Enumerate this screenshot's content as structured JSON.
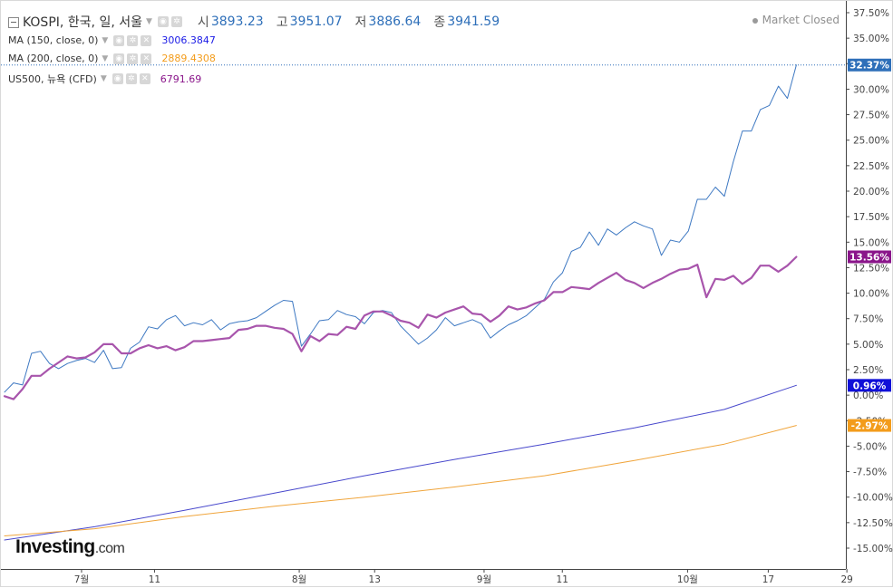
{
  "header": {
    "symbol": "KOSPI, 한국, 일, 서울",
    "open_label": "시",
    "open_value": "3893.23",
    "high_label": "고",
    "high_value": "3951.07",
    "low_label": "저",
    "low_value": "3886.64",
    "close_label": "종",
    "close_value": "3941.59",
    "status": "Market Closed"
  },
  "indicators": [
    {
      "name": "MA (150, close, 0)",
      "value": "3006.3847",
      "color": "#1a1ae6"
    },
    {
      "name": "MA (200, close, 0)",
      "value": "2889.4308",
      "color": "#f39c1b"
    },
    {
      "name": "US500, 뉴욕 (CFD)",
      "value": "6791.69",
      "color": "#8a158a"
    }
  ],
  "logo": {
    "brand": "Investing",
    "suffix": ".com"
  },
  "chart_data": {
    "type": "line",
    "x_tick_labels": [
      "7월",
      "11",
      "8월",
      "13",
      "9월",
      "11",
      "10월",
      "17",
      "29"
    ],
    "y_tick_labels": [
      "37.50%",
      "35.00%",
      "32.50%",
      "30.00%",
      "27.50%",
      "25.00%",
      "22.50%",
      "20.00%",
      "17.50%",
      "15.00%",
      "12.50%",
      "10.00%",
      "7.50%",
      "5.00%",
      "2.50%",
      "0.00%",
      "-2.50%",
      "-5.00%",
      "-7.50%",
      "-10.00%",
      "-12.50%",
      "-15.00%"
    ],
    "ylim": [
      -17,
      38
    ],
    "xlim": [
      0,
      93.5
    ],
    "grid": false,
    "last_value_labels": [
      {
        "text": "32.37%",
        "value": 32.37,
        "color": "#2e6fb9"
      },
      {
        "text": "13.56%",
        "value": 13.56,
        "color": "#8a158a"
      },
      {
        "text": "0.96%",
        "value": 0.96,
        "color": "#1010d8"
      },
      {
        "text": "-2.97%",
        "value": -2.97,
        "color": "#f39c1b"
      }
    ],
    "series": [
      {
        "color": "#3d78c2",
        "width": 1,
        "points": [
          [
            0,
            0.3
          ],
          [
            1,
            1.2
          ],
          [
            2,
            1.0
          ],
          [
            3,
            4.1
          ],
          [
            4,
            4.3
          ],
          [
            5,
            3.1
          ],
          [
            6,
            2.6
          ],
          [
            7,
            3.1
          ],
          [
            8,
            3.4
          ],
          [
            9,
            3.6
          ],
          [
            10,
            3.2
          ],
          [
            11,
            4.4
          ],
          [
            12,
            2.6
          ],
          [
            13,
            2.7
          ],
          [
            14,
            4.6
          ],
          [
            15,
            5.2
          ],
          [
            16,
            6.7
          ],
          [
            17,
            6.5
          ],
          [
            18,
            7.4
          ],
          [
            19,
            7.8
          ],
          [
            20,
            6.8
          ],
          [
            21,
            7.1
          ],
          [
            22,
            6.9
          ],
          [
            23,
            7.4
          ],
          [
            24,
            6.4
          ],
          [
            25,
            7.0
          ],
          [
            26,
            7.2
          ],
          [
            27,
            7.3
          ],
          [
            28,
            7.6
          ],
          [
            29,
            8.2
          ],
          [
            30,
            8.8
          ],
          [
            31,
            9.3
          ],
          [
            32,
            9.2
          ],
          [
            33,
            4.8
          ],
          [
            34,
            6.0
          ],
          [
            35,
            7.3
          ],
          [
            36,
            7.4
          ],
          [
            37,
            8.3
          ],
          [
            38,
            7.9
          ],
          [
            39,
            7.7
          ],
          [
            40,
            7.0
          ],
          [
            41,
            8.1
          ],
          [
            42,
            8.3
          ],
          [
            43,
            8.1
          ],
          [
            44,
            6.8
          ],
          [
            45,
            5.9
          ],
          [
            46,
            5.0
          ],
          [
            47,
            5.6
          ],
          [
            48,
            6.4
          ],
          [
            49,
            7.6
          ],
          [
            50,
            6.8
          ],
          [
            51,
            7.1
          ],
          [
            52,
            7.4
          ],
          [
            53,
            7.0
          ],
          [
            54,
            5.6
          ],
          [
            55,
            6.3
          ],
          [
            56,
            6.9
          ],
          [
            57,
            7.3
          ],
          [
            58,
            7.8
          ],
          [
            59,
            8.6
          ],
          [
            60,
            9.4
          ],
          [
            61,
            11.1
          ],
          [
            62,
            12.0
          ],
          [
            63,
            14.1
          ],
          [
            64,
            14.5
          ],
          [
            65,
            16.0
          ],
          [
            66,
            14.7
          ],
          [
            67,
            16.3
          ],
          [
            68,
            15.7
          ],
          [
            69,
            16.4
          ],
          [
            70,
            17.0
          ],
          [
            71,
            16.6
          ],
          [
            72,
            16.3
          ],
          [
            73,
            13.7
          ],
          [
            74,
            15.2
          ],
          [
            75,
            15.0
          ],
          [
            76,
            16.1
          ],
          [
            77,
            19.2
          ],
          [
            78,
            19.2
          ],
          [
            79,
            20.4
          ],
          [
            80,
            19.5
          ],
          [
            81,
            22.9
          ],
          [
            82,
            25.9
          ],
          [
            83,
            25.9
          ],
          [
            84,
            28.0
          ],
          [
            85,
            28.4
          ],
          [
            86,
            30.3
          ],
          [
            87,
            29.1
          ],
          [
            88,
            32.37
          ]
        ]
      },
      {
        "color": "#a855ac",
        "width": 2.2,
        "points": [
          [
            0,
            -0.1
          ],
          [
            1,
            -0.4
          ],
          [
            2,
            0.6
          ],
          [
            3,
            1.9
          ],
          [
            4,
            1.9
          ],
          [
            5,
            2.6
          ],
          [
            6,
            3.2
          ],
          [
            7,
            3.8
          ],
          [
            8,
            3.6
          ],
          [
            9,
            3.7
          ],
          [
            10,
            4.2
          ],
          [
            11,
            5.0
          ],
          [
            12,
            5.0
          ],
          [
            13,
            4.1
          ],
          [
            14,
            4.1
          ],
          [
            15,
            4.6
          ],
          [
            16,
            4.9
          ],
          [
            17,
            4.6
          ],
          [
            18,
            4.8
          ],
          [
            19,
            4.4
          ],
          [
            20,
            4.7
          ],
          [
            21,
            5.3
          ],
          [
            22,
            5.3
          ],
          [
            23,
            5.4
          ],
          [
            24,
            5.5
          ],
          [
            25,
            5.6
          ],
          [
            26,
            6.4
          ],
          [
            27,
            6.5
          ],
          [
            28,
            6.8
          ],
          [
            29,
            6.8
          ],
          [
            30,
            6.6
          ],
          [
            31,
            6.5
          ],
          [
            32,
            6.0
          ],
          [
            33,
            4.3
          ],
          [
            34,
            5.8
          ],
          [
            35,
            5.3
          ],
          [
            36,
            6.0
          ],
          [
            37,
            5.9
          ],
          [
            38,
            6.7
          ],
          [
            39,
            6.5
          ],
          [
            40,
            7.8
          ],
          [
            41,
            8.2
          ],
          [
            42,
            8.2
          ],
          [
            43,
            7.8
          ],
          [
            44,
            7.3
          ],
          [
            45,
            7.1
          ],
          [
            46,
            6.6
          ],
          [
            47,
            7.9
          ],
          [
            48,
            7.6
          ],
          [
            49,
            8.1
          ],
          [
            50,
            8.4
          ],
          [
            51,
            8.7
          ],
          [
            52,
            8.0
          ],
          [
            53,
            7.9
          ],
          [
            54,
            7.2
          ],
          [
            55,
            7.8
          ],
          [
            56,
            8.7
          ],
          [
            57,
            8.4
          ],
          [
            58,
            8.6
          ],
          [
            59,
            9.0
          ],
          [
            60,
            9.3
          ],
          [
            61,
            10.1
          ],
          [
            62,
            10.1
          ],
          [
            63,
            10.6
          ],
          [
            64,
            10.5
          ],
          [
            65,
            10.4
          ],
          [
            66,
            11.0
          ],
          [
            67,
            11.5
          ],
          [
            68,
            12.0
          ],
          [
            69,
            11.3
          ],
          [
            70,
            11.0
          ],
          [
            71,
            10.5
          ],
          [
            72,
            11.0
          ],
          [
            73,
            11.4
          ],
          [
            74,
            11.9
          ],
          [
            75,
            12.3
          ],
          [
            76,
            12.4
          ],
          [
            77,
            12.8
          ],
          [
            78,
            9.6
          ],
          [
            79,
            11.4
          ],
          [
            80,
            11.3
          ],
          [
            81,
            11.7
          ],
          [
            82,
            10.9
          ],
          [
            83,
            11.5
          ],
          [
            84,
            12.7
          ],
          [
            85,
            12.7
          ],
          [
            86,
            12.1
          ],
          [
            87,
            12.7
          ],
          [
            88,
            13.56
          ]
        ]
      },
      {
        "color": "#4848cc",
        "width": 1,
        "points": [
          [
            0,
            -14.2
          ],
          [
            10,
            -12.9
          ],
          [
            20,
            -11.3
          ],
          [
            30,
            -9.6
          ],
          [
            40,
            -7.9
          ],
          [
            50,
            -6.3
          ],
          [
            60,
            -4.8
          ],
          [
            70,
            -3.2
          ],
          [
            80,
            -1.4
          ],
          [
            88,
            0.96
          ]
        ]
      },
      {
        "color": "#f0a53c",
        "width": 1,
        "points": [
          [
            0,
            -13.8
          ],
          [
            10,
            -13.1
          ],
          [
            20,
            -11.9
          ],
          [
            30,
            -10.9
          ],
          [
            40,
            -10.0
          ],
          [
            50,
            -9.0
          ],
          [
            60,
            -7.9
          ],
          [
            70,
            -6.4
          ],
          [
            80,
            -4.8
          ],
          [
            88,
            -2.97
          ]
        ]
      }
    ]
  }
}
